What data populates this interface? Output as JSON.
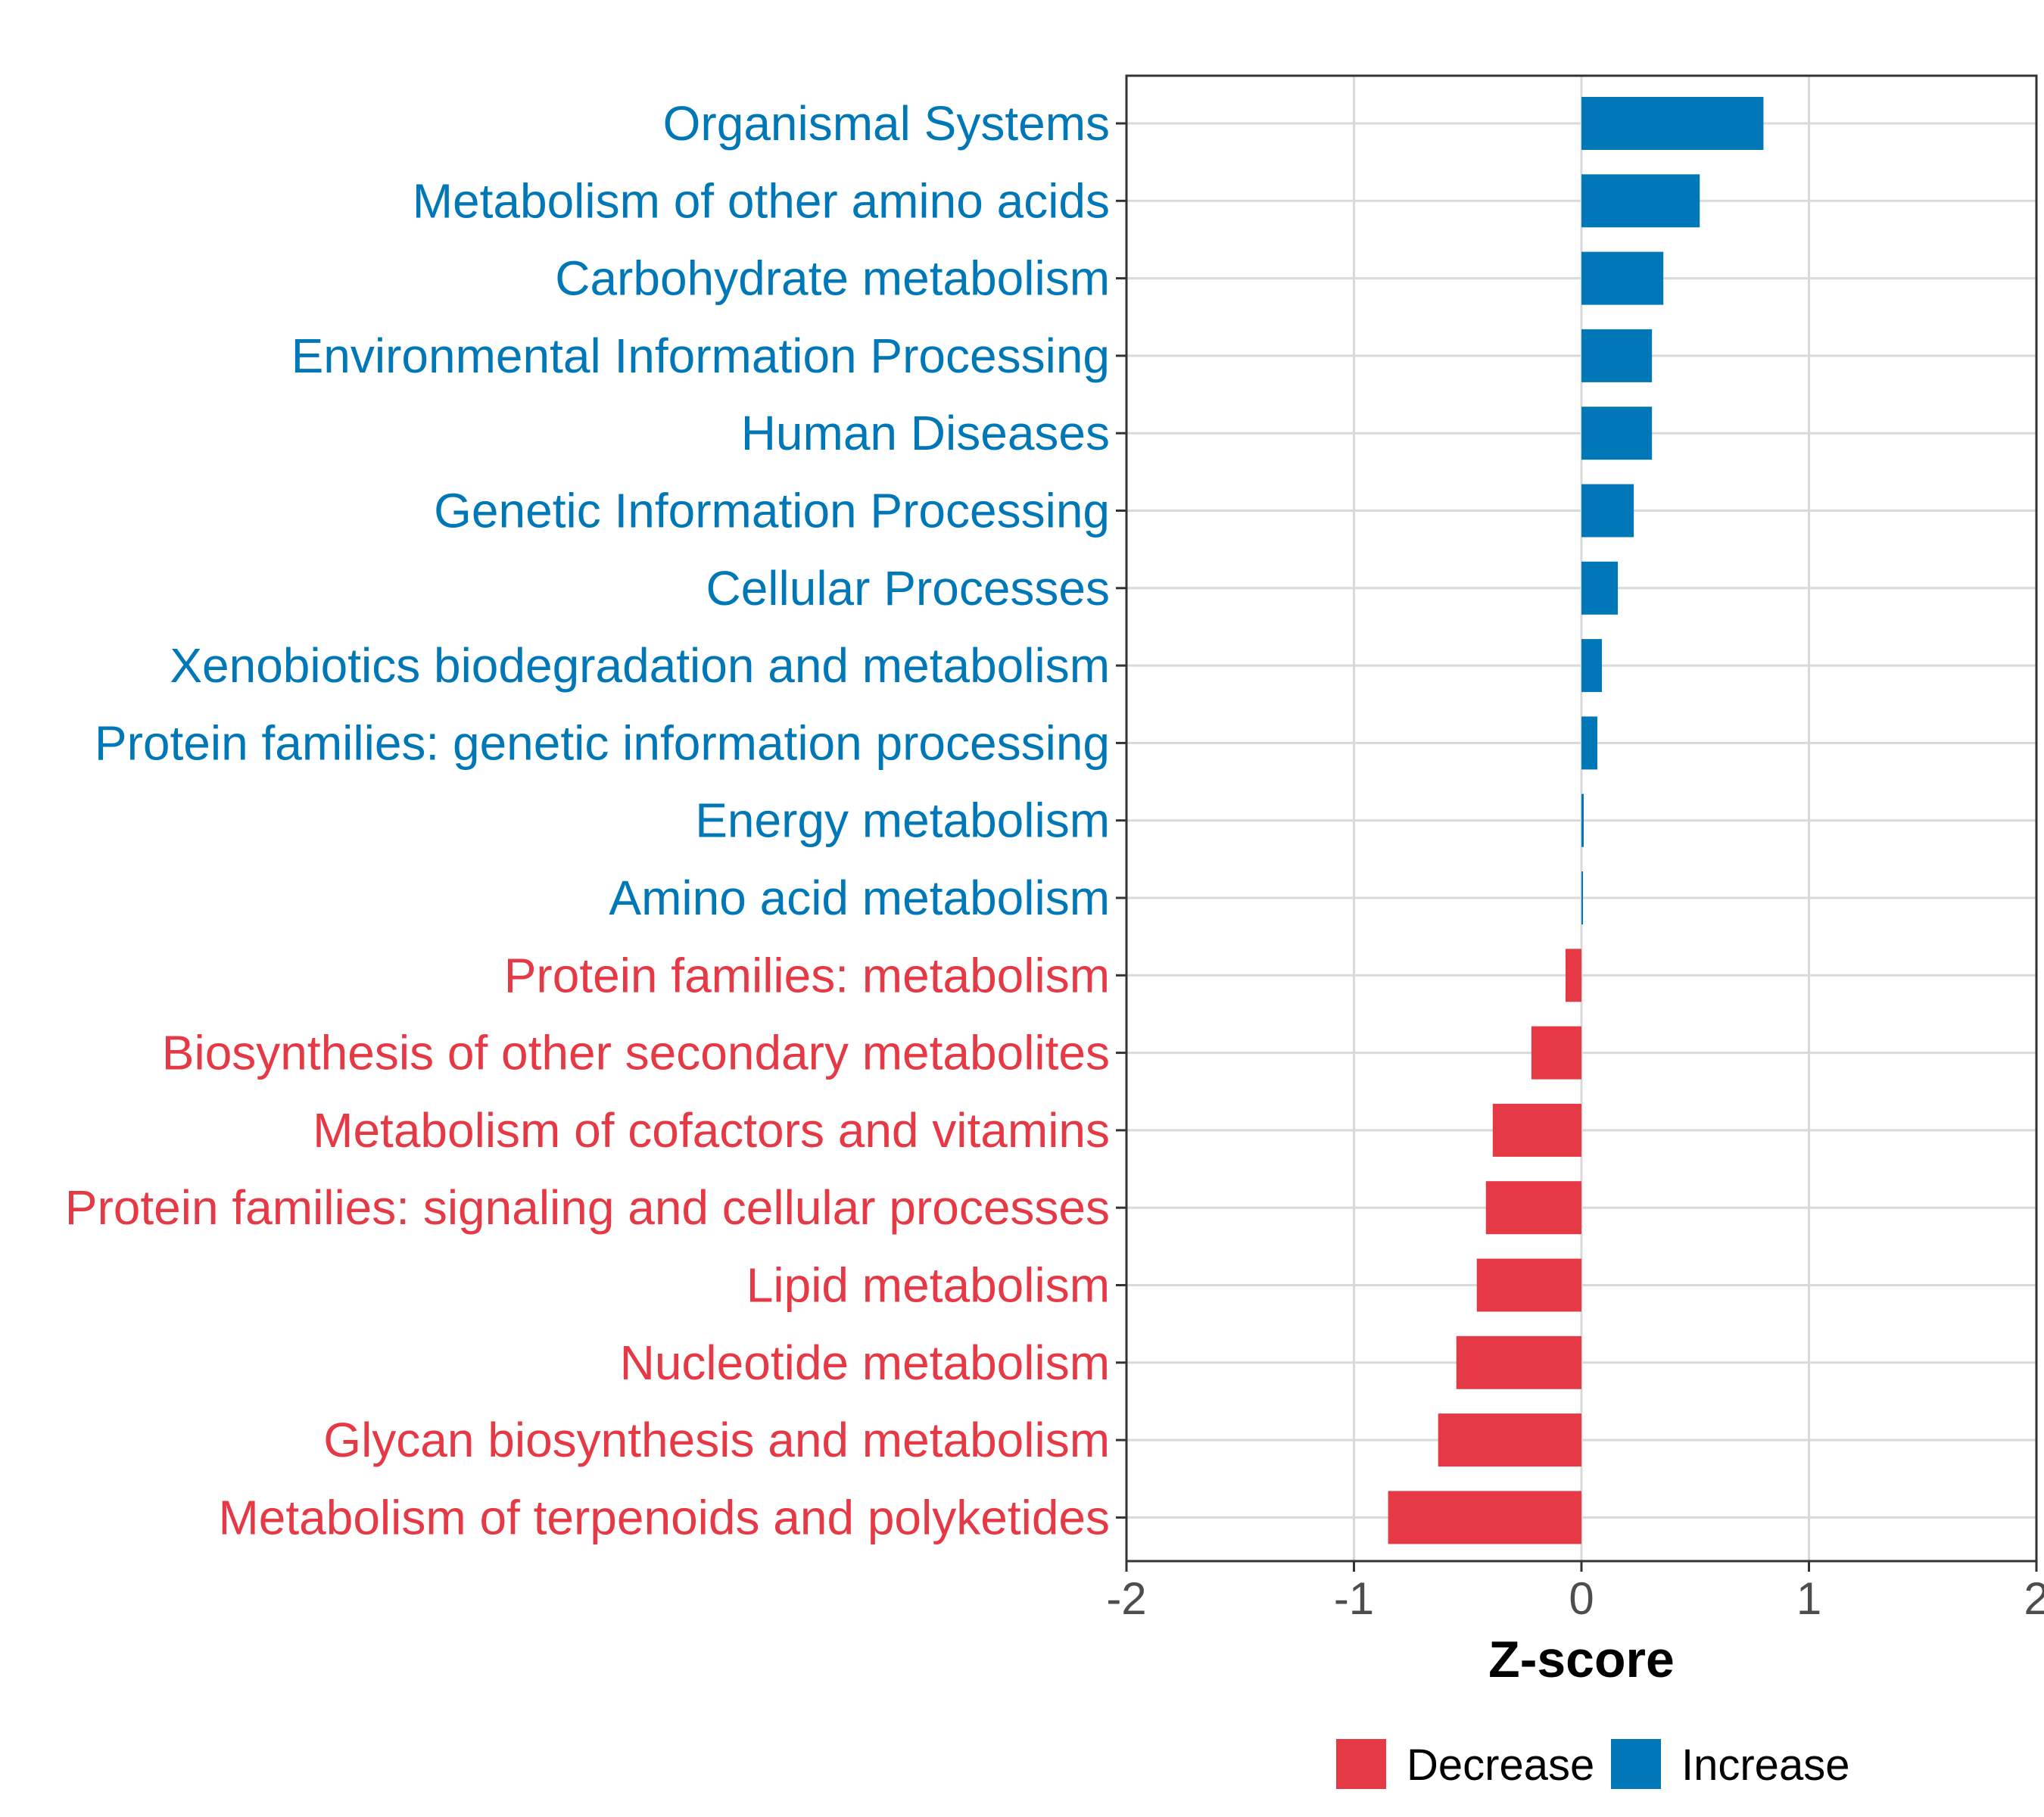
{
  "chart_data": {
    "type": "bar",
    "orientation": "horizontal",
    "title": "",
    "xlabel": "Z-score",
    "ylabel": "",
    "xlim": [
      -2,
      2
    ],
    "xticks": [
      -2,
      -1,
      0,
      1,
      2
    ],
    "xtick_labels": [
      "-2",
      "-1",
      "0",
      "1",
      "2"
    ],
    "grid": true,
    "legend_position": "bottom",
    "colors": {
      "Decrease": "#e63946",
      "Increase": "#0077b6",
      "grid": "#d9d9d9",
      "axis": "#333333"
    },
    "categories": [
      "Organismal Systems",
      "Metabolism of other amino acids",
      "Carbohydrate metabolism",
      "Environmental Information Processing",
      "Human Diseases",
      "Genetic Information Processing",
      "Cellular Processes",
      "Xenobiotics biodegradation and metabolism",
      "Protein families: genetic information processing",
      "Energy metabolism",
      "Amino acid metabolism",
      "Protein families: metabolism",
      "Biosynthesis of other secondary metabolites",
      "Metabolism of cofactors and vitamins",
      "Protein families: signaling and cellular processes",
      "Lipid metabolism",
      "Nucleotide metabolism",
      "Glycan biosynthesis and metabolism",
      "Metabolism of terpenoids and polyketides"
    ],
    "values": [
      0.8,
      0.52,
      0.36,
      0.31,
      0.31,
      0.23,
      0.16,
      0.09,
      0.07,
      0.01,
      0.005,
      -0.07,
      -0.22,
      -0.39,
      -0.42,
      -0.46,
      -0.55,
      -0.63,
      -0.85
    ],
    "groups": [
      "Increase",
      "Increase",
      "Increase",
      "Increase",
      "Increase",
      "Increase",
      "Increase",
      "Increase",
      "Increase",
      "Increase",
      "Increase",
      "Decrease",
      "Decrease",
      "Decrease",
      "Decrease",
      "Decrease",
      "Decrease",
      "Decrease",
      "Decrease"
    ],
    "legend": [
      "Decrease",
      "Increase"
    ]
  }
}
